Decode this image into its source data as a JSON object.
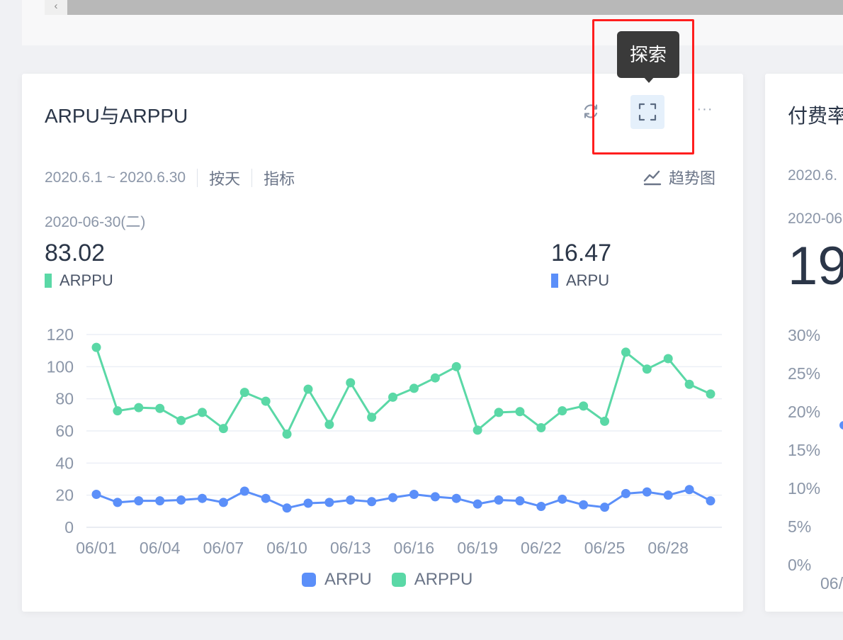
{
  "main_card": {
    "title": "ARPU与ARPPU",
    "date_range": "2020.6.1 ~ 2020.6.30",
    "granularity": "按天",
    "metric_button": "指标",
    "chart_type_label": "趋势图",
    "more_icon_text": "···",
    "selected_date": "2020-06-30(二)",
    "kpis": [
      {
        "value": "83.02",
        "label": "ARPPU",
        "color": "#5ad8a6"
      },
      {
        "value": "16.47",
        "label": "ARPU",
        "color": "#5b8ff9"
      }
    ],
    "tooltip": "探索",
    "legend": [
      {
        "label": "ARPU",
        "color": "#5b8ff9"
      },
      {
        "label": "ARPPU",
        "color": "#5ad8a6"
      }
    ]
  },
  "chart_data": {
    "type": "line",
    "x": [
      "06/01",
      "06/02",
      "06/03",
      "06/04",
      "06/05",
      "06/06",
      "06/07",
      "06/08",
      "06/09",
      "06/10",
      "06/11",
      "06/12",
      "06/13",
      "06/14",
      "06/15",
      "06/16",
      "06/17",
      "06/18",
      "06/19",
      "06/20",
      "06/21",
      "06/22",
      "06/23",
      "06/24",
      "06/25",
      "06/26",
      "06/27",
      "06/28",
      "06/29",
      "06/30"
    ],
    "x_tick_labels": [
      "06/01",
      "06/04",
      "06/07",
      "06/10",
      "06/13",
      "06/16",
      "06/19",
      "06/22",
      "06/25",
      "06/28"
    ],
    "ylim": [
      0,
      120
    ],
    "y_ticks": [
      "0",
      "20",
      "40",
      "60",
      "80",
      "100",
      "120"
    ],
    "grid": true,
    "legend_position": "bottom",
    "series": [
      {
        "name": "ARPU",
        "color": "#5b8ff9",
        "values": [
          20.5,
          15.5,
          16.5,
          16.5,
          17,
          18,
          15.5,
          22.5,
          18,
          12,
          15,
          15.5,
          17,
          16,
          18.5,
          20.5,
          19,
          18,
          14.5,
          17,
          16.5,
          13,
          17.5,
          14,
          12.5,
          21,
          22,
          20,
          23.5,
          16.5
        ]
      },
      {
        "name": "ARPPU",
        "color": "#5ad8a6",
        "values": [
          112,
          72.5,
          74.5,
          74,
          66.5,
          71.5,
          61.5,
          84,
          78.5,
          58,
          86,
          64,
          90,
          68.5,
          81,
          86.5,
          93,
          100,
          60.5,
          71.5,
          72,
          62,
          72.5,
          75.5,
          66,
          109,
          98.5,
          105,
          89,
          83
        ]
      }
    ]
  },
  "right_card": {
    "title": "付费率",
    "date_range": "2020.6.",
    "selected_date": "2020-06",
    "big_value": "19",
    "y_ticks": [
      "30%",
      "25%",
      "20%",
      "15%",
      "10%",
      "5%",
      "0%"
    ],
    "x_tick": "06/"
  },
  "scrollbar": {
    "arrow": "‹"
  }
}
